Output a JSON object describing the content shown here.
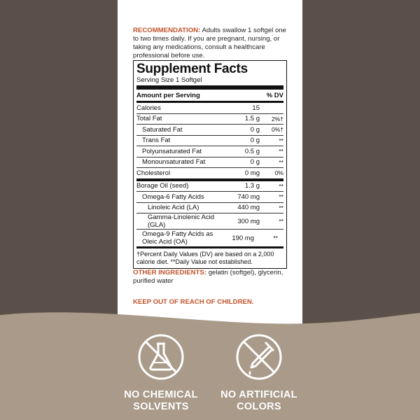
{
  "recommendation": {
    "label": "RECOMMENDATION:",
    "text": "Adults swallow 1 softgel one to two times daily. If you are pregnant, nursing, or taking any medications, consult a healthcare professional before use."
  },
  "facts": {
    "title": "Supplement Facts",
    "serving_size": "Serving Size 1 Softgel",
    "header": [
      "Amount per Serving",
      "% DV"
    ],
    "rows": [
      {
        "name": "Calories",
        "amount": "15"
      },
      {
        "name": "Total Fat",
        "amount": "1.5 g",
        "dv": "2%†"
      },
      {
        "name": "Saturated Fat",
        "amount": "0 g",
        "dv": "0%†"
      },
      {
        "name": "Trans Fat",
        "amount": "0 g",
        "dv": "**"
      },
      {
        "name": "Polyunsaturated Fat",
        "amount": "0.5 g",
        "dv": "**"
      },
      {
        "name": "Monounsaturated Fat",
        "amount": "0 g",
        "dv": "**"
      },
      {
        "name": "Cholesterol",
        "amount": "0 mg",
        "dv": "0%"
      },
      {
        "name": "Borage Oil (seed)",
        "amount": "1.3 g",
        "dv": "**"
      },
      {
        "name": "Omega-6 Fatty Acids",
        "amount": "740 mg",
        "dv": "**"
      },
      {
        "name": "Linoleic Acid (LA)",
        "amount": "440 mg",
        "dv": "**"
      },
      {
        "name": "Gamma-Linolenic Acid (GLA)",
        "amount": "300 mg",
        "dv": "**"
      },
      {
        "name": "Omega-9 Fatty Acids as Oleic Acid (OA)",
        "amount": "190 mg",
        "dv": "**"
      }
    ],
    "footnote": "†Percent Daily Values (DV) are based on a 2,000 calorie diet. **Daily Value not established."
  },
  "other_ingredients": {
    "label": "OTHER INGREDIENTS:",
    "text": "gelatin (softgel), glycerin, purified water"
  },
  "warning": "KEEP OUT OF REACH OF CHILDREN.",
  "badges": [
    [
      "NO CHEMICAL",
      "SOLVENTS"
    ],
    [
      "NO ARTIFICIAL",
      "COLORS"
    ]
  ]
}
